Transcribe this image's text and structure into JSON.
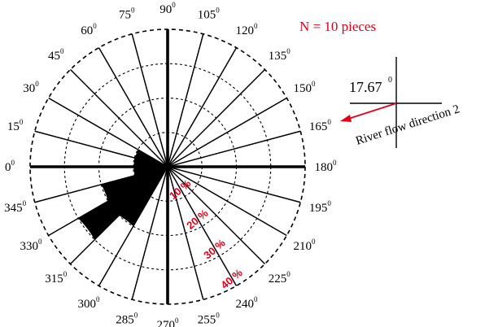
{
  "chart_data": {
    "type": "rose",
    "annotation_n": "N = 10 pieces",
    "angle_labels": [
      "0",
      "15",
      "30",
      "45",
      "60",
      "75",
      "90",
      "105",
      "120",
      "135",
      "150",
      "165",
      "180",
      "195",
      "210",
      "225",
      "240",
      "255",
      "270",
      "285",
      "300",
      "315",
      "330",
      "345"
    ],
    "degree_sign": "0",
    "ring_labels": [
      "10 %",
      "20 %",
      "30 %",
      "40 %"
    ],
    "radial_max_percent": 40,
    "petals": [
      {
        "from_deg": 0,
        "to_deg": 15,
        "percent": 10
      },
      {
        "from_deg": 15,
        "to_deg": 30,
        "percent": 10
      },
      {
        "from_deg": 300,
        "to_deg": 315,
        "percent": 20
      },
      {
        "from_deg": 315,
        "to_deg": 330,
        "percent": 30
      },
      {
        "from_deg": 330,
        "to_deg": 345,
        "percent": 20
      },
      {
        "from_deg": 345,
        "to_deg": 360,
        "percent": 10
      }
    ],
    "bold_spokes_deg": [
      0,
      90,
      180,
      270
    ],
    "inset": {
      "angle_value": "17.67",
      "angle_degree_sign": "0",
      "arrow_label": "River flow direction 2",
      "arrow_color": "#e2001a"
    }
  }
}
